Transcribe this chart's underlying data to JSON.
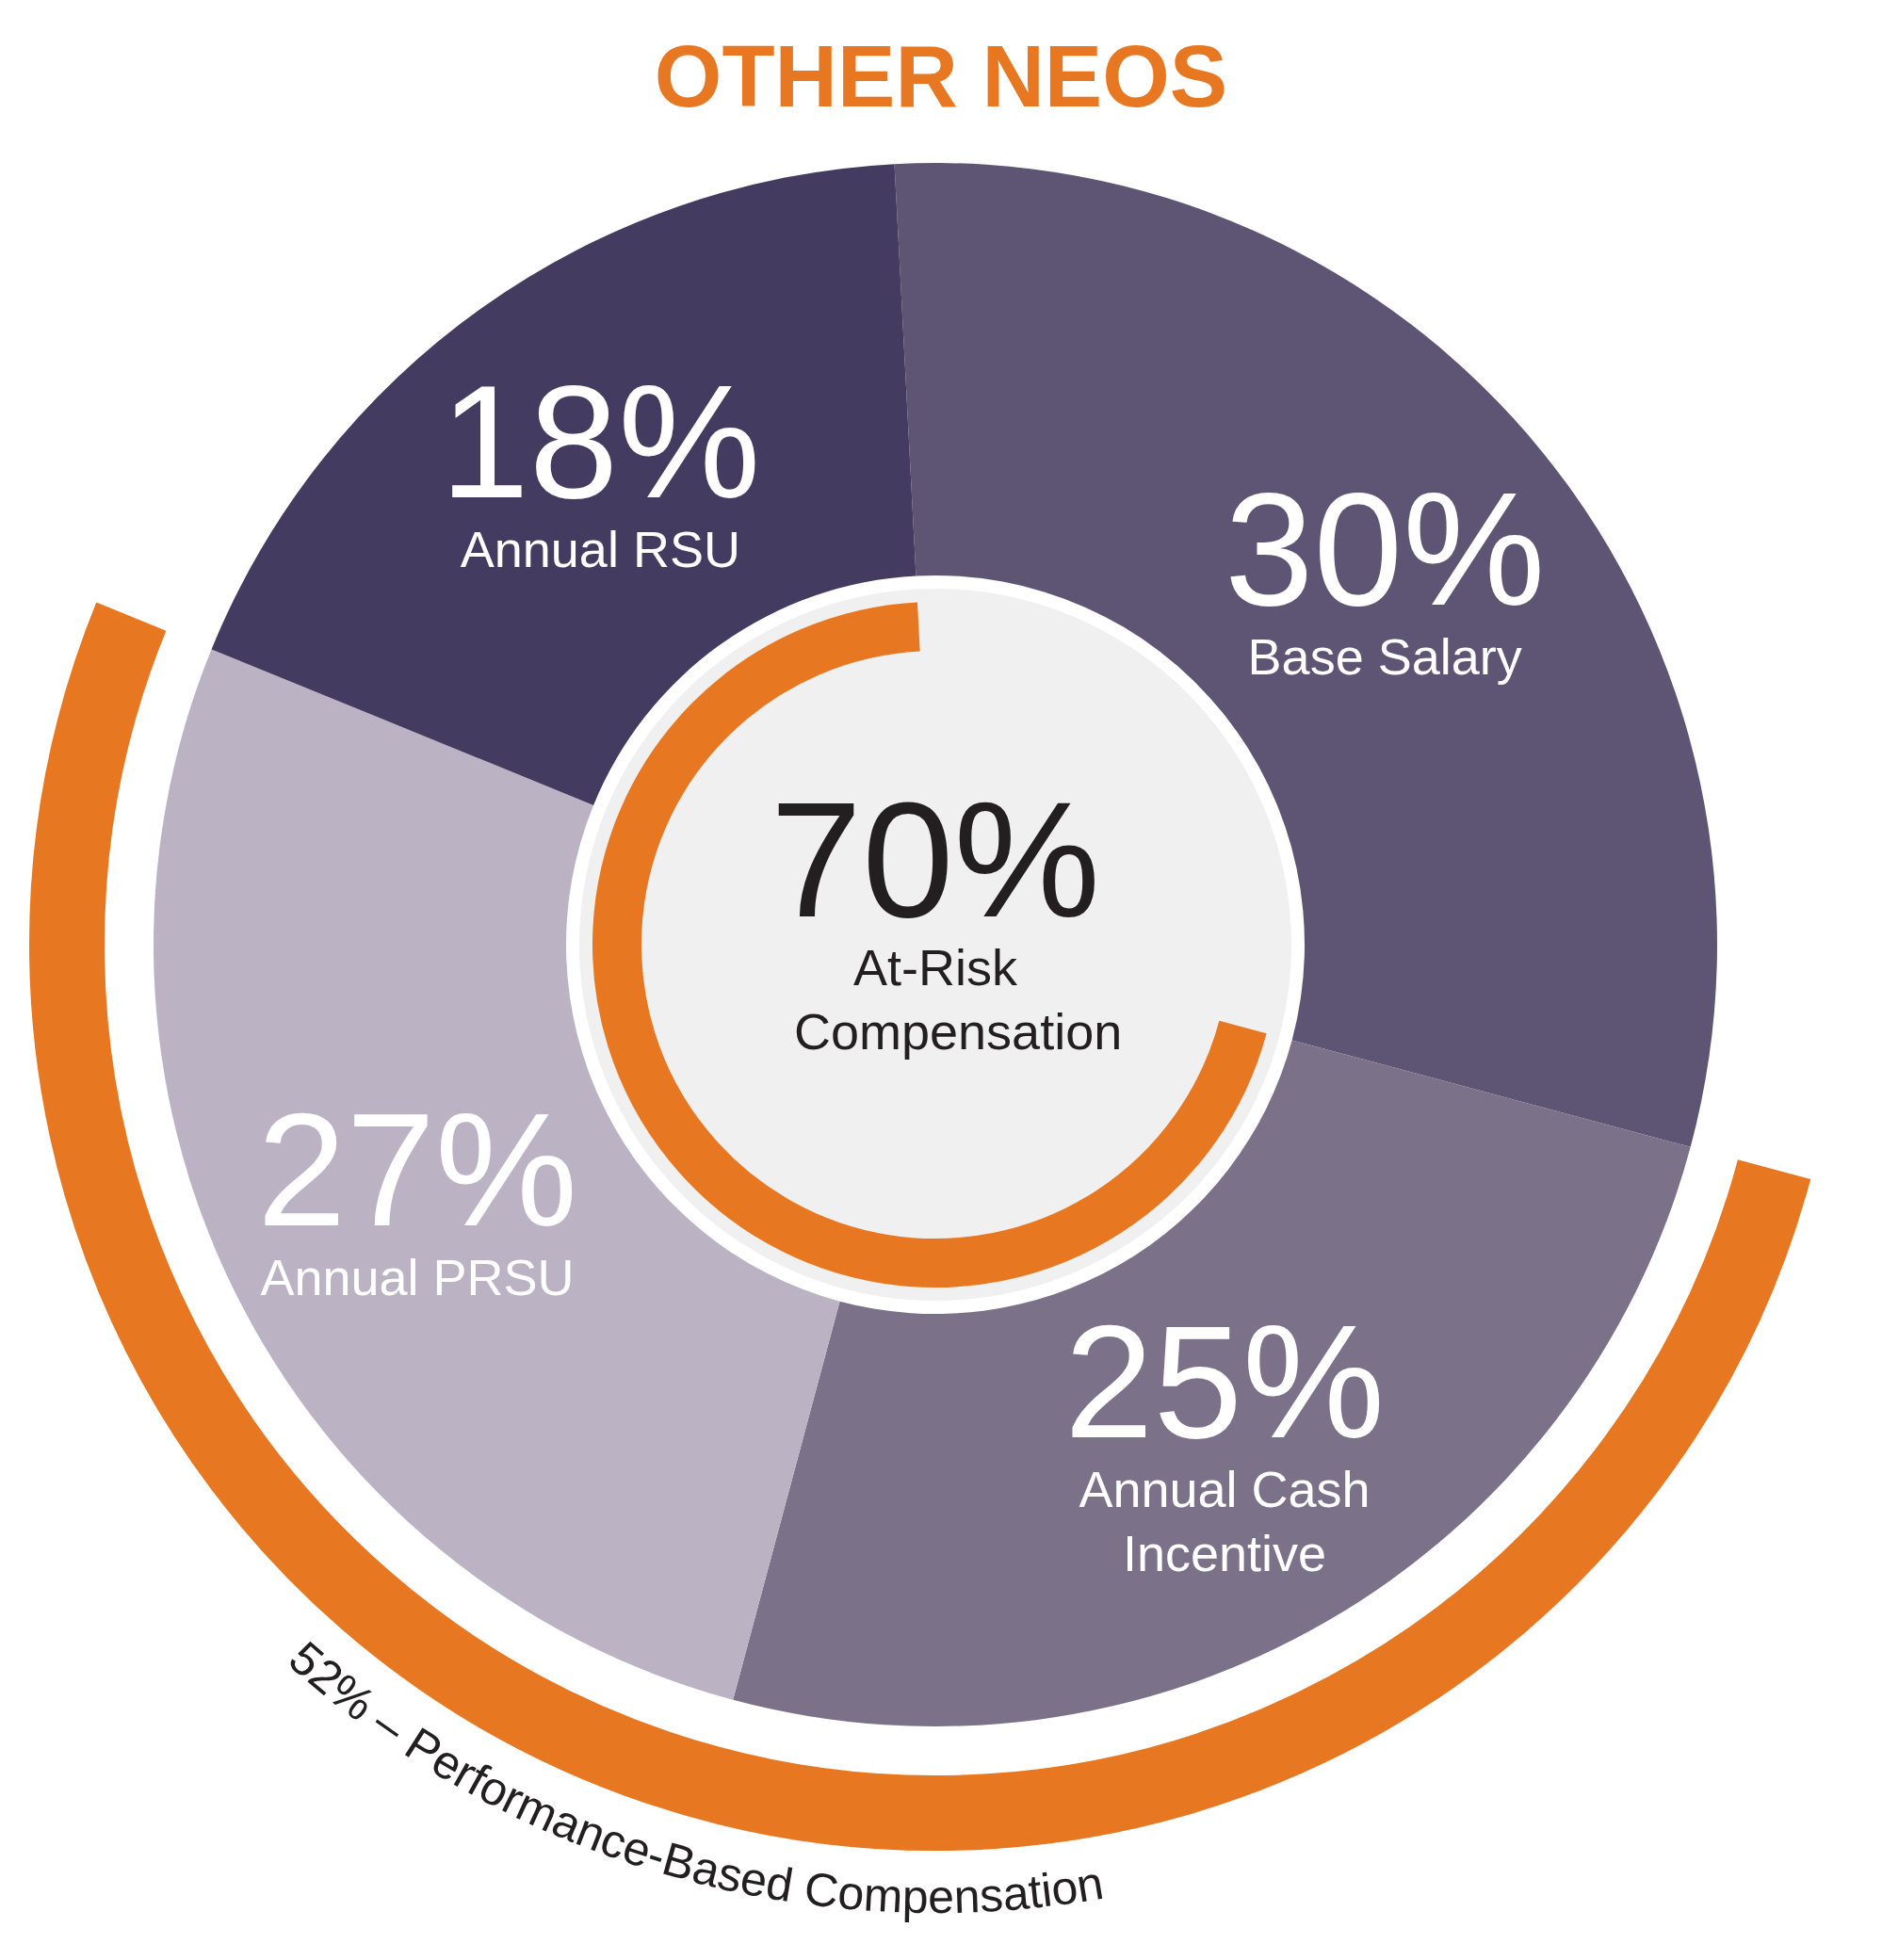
{
  "chart_data": {
    "type": "donut",
    "title": "OTHER NEOS",
    "categories": [
      "Base Salary",
      "Annual Cash Incentive",
      "Annual PRSU",
      "Annual RSU"
    ],
    "values": [
      30,
      25,
      27,
      18
    ],
    "colors": [
      "#5e5575",
      "#7b7189",
      "#bbb3c3",
      "#443b60"
    ],
    "value_labels": [
      "30%",
      "25%",
      "27%",
      "18%"
    ],
    "annotations": [
      "70%",
      "At-Risk Compensation",
      "52% – Performance-Based Compensation"
    ]
  }
}
